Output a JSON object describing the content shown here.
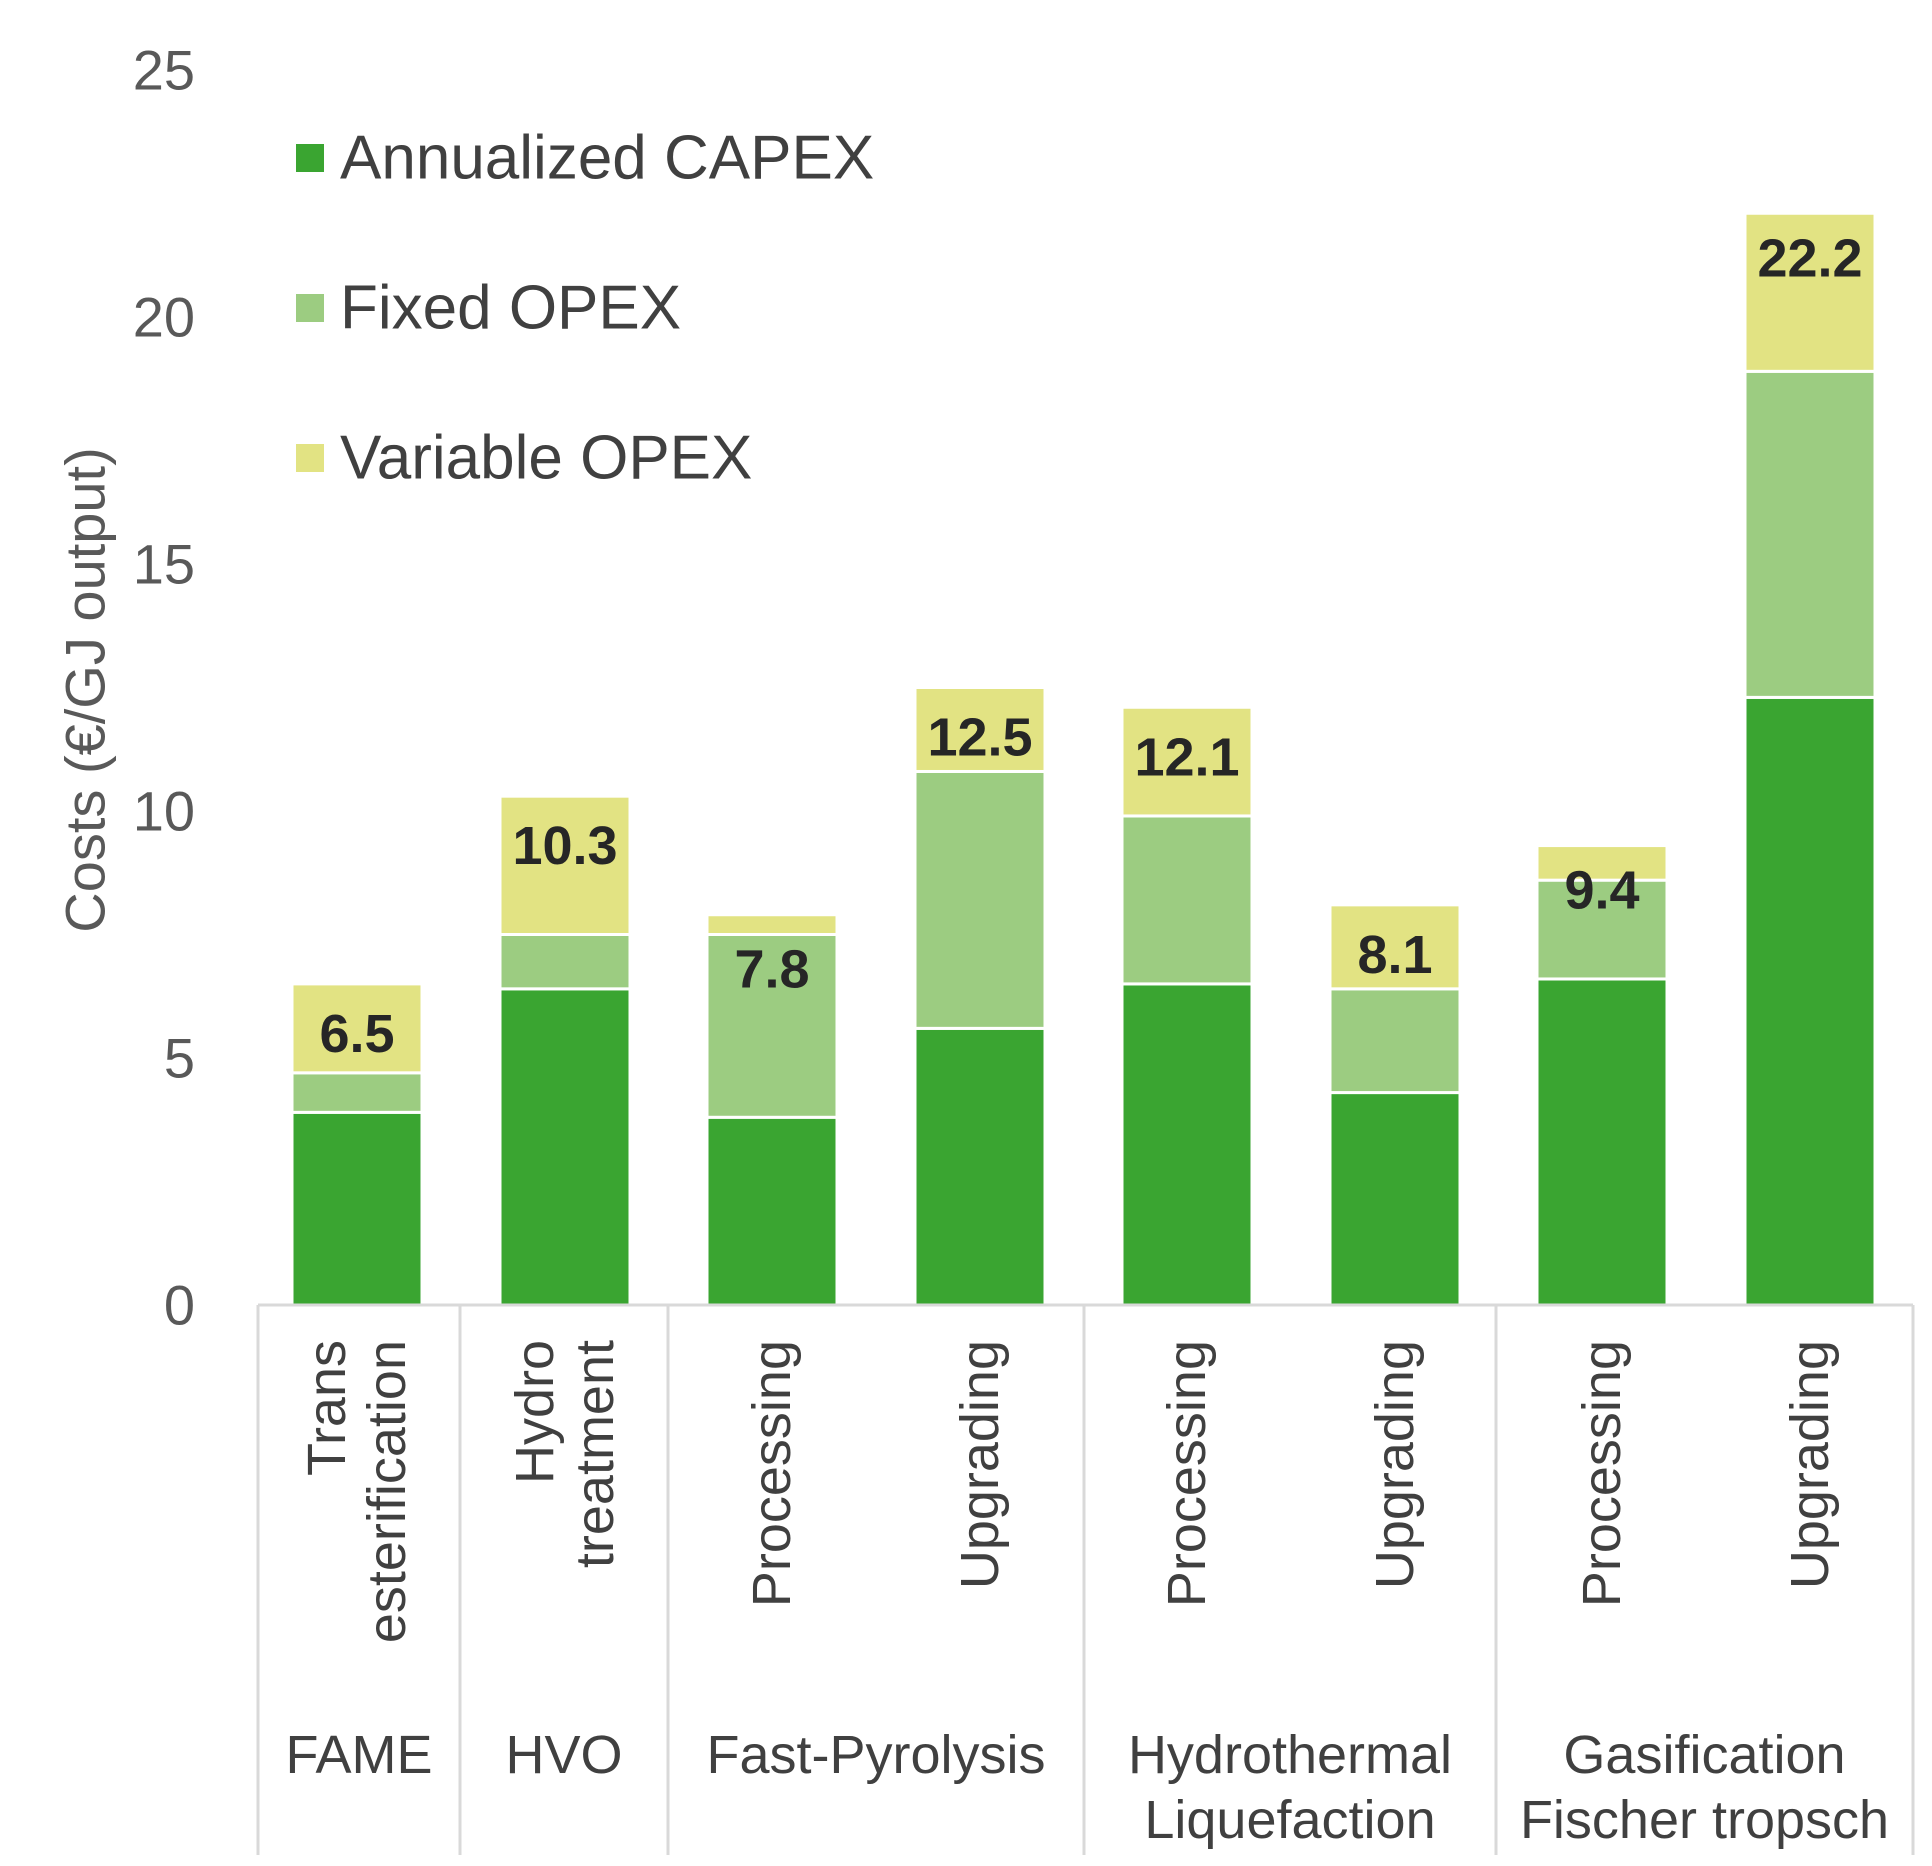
{
  "chart_data": {
    "type": "bar",
    "stacked": true,
    "title": "",
    "xlabel": "",
    "ylabel": "Costs (€/GJ output)",
    "ylim": [
      0,
      25
    ],
    "yticks": [
      0,
      5,
      10,
      15,
      20,
      25
    ],
    "grid": false,
    "legend_position": "top-left",
    "categories": [
      {
        "group": "FAME",
        "label_lines": [
          "Trans",
          "esterification"
        ]
      },
      {
        "group": "HVO",
        "label_lines": [
          "Hydro",
          "treatment"
        ]
      },
      {
        "group": "Fast-Pyrolysis",
        "label_lines": [
          "Processing"
        ]
      },
      {
        "group": "Fast-Pyrolysis",
        "label_lines": [
          "Upgrading"
        ]
      },
      {
        "group": "Hydrothermal Liquefaction",
        "label_lines": [
          "Processing"
        ]
      },
      {
        "group": "Hydrothermal Liquefaction",
        "label_lines": [
          "Upgrading"
        ]
      },
      {
        "group": "Gasification Fischer tropsch",
        "label_lines": [
          "Processing"
        ]
      },
      {
        "group": "Gasification Fischer tropsch",
        "label_lines": [
          "Upgrading"
        ]
      }
    ],
    "groups": [
      {
        "name": "FAME",
        "lines": [
          "FAME"
        ],
        "start": 0,
        "end": 0
      },
      {
        "name": "HVO",
        "lines": [
          "HVO"
        ],
        "start": 1,
        "end": 1
      },
      {
        "name": "Fast-Pyrolysis",
        "lines": [
          "Fast-Pyrolysis"
        ],
        "start": 2,
        "end": 3
      },
      {
        "name": "Hydrothermal Liquefaction",
        "lines": [
          "Hydrothermal",
          "Liquefaction"
        ],
        "start": 4,
        "end": 5
      },
      {
        "name": "Gasification Fischer tropsch",
        "lines": [
          "Gasification",
          "Fischer tropsch"
        ],
        "start": 6,
        "end": 7
      }
    ],
    "series": [
      {
        "name": "Annualized CAPEX",
        "color": "#3aa531",
        "values": [
          3.9,
          6.4,
          3.8,
          5.6,
          6.5,
          4.3,
          6.6,
          12.3
        ]
      },
      {
        "name": "Fixed OPEX",
        "color": "#9ccc81",
        "values": [
          0.8,
          1.1,
          3.7,
          5.2,
          3.4,
          2.1,
          2.0,
          6.6
        ]
      },
      {
        "name": "Variable OPEX",
        "color": "#e2e383",
        "values": [
          1.8,
          2.8,
          0.4,
          1.7,
          2.2,
          1.7,
          0.7,
          3.2
        ]
      }
    ],
    "totals": [
      6.5,
      10.3,
      7.8,
      12.5,
      12.1,
      8.1,
      9.4,
      22.2
    ]
  }
}
